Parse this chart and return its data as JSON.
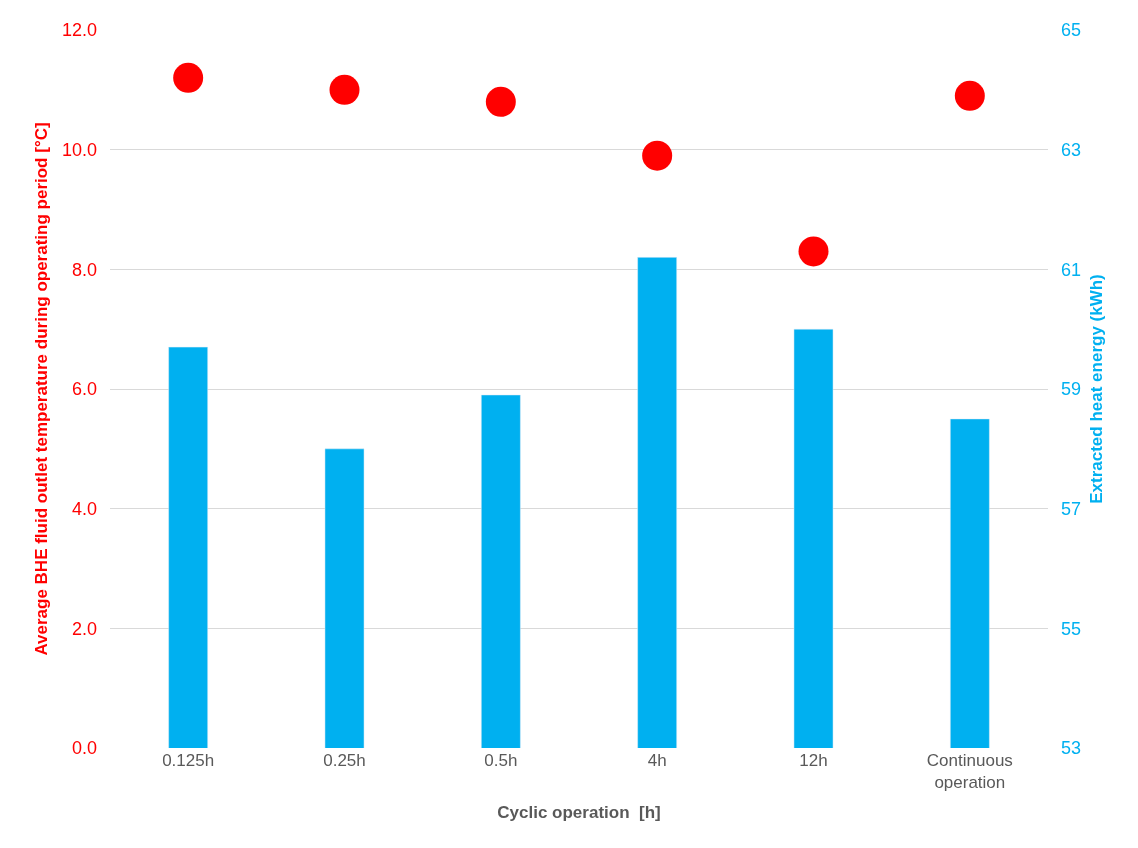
{
  "chart_data": {
    "type": "bar",
    "xlabel": "Cyclic operation  [h]",
    "ylabel": "Average BHE fluid outlet temperature during operating period [°C]",
    "y2label": "Extracted heat energy (kWh)",
    "categories": [
      "0.125h",
      "0.25h",
      "0.5h",
      "4h",
      "12h",
      "Continuous operation"
    ],
    "series": [
      {
        "axis": "y2",
        "color": "#00b0f0",
        "values": [
          59.7,
          58.0,
          58.9,
          61.2,
          60.0,
          58.5
        ]
      },
      {
        "type": "scatter",
        "color": "#ff0000",
        "marker": "circle",
        "values": [
          11.2,
          11.0,
          10.8,
          9.9,
          8.3,
          10.9
        ]
      }
    ],
    "ylim": [
      0,
      12
    ],
    "yticks": [
      {
        "value": 0,
        "label": "0.0"
      },
      {
        "value": 2,
        "label": "2.0"
      },
      {
        "value": 4,
        "label": "4.0"
      },
      {
        "value": 6,
        "label": "6.0"
      },
      {
        "value": 8,
        "label": "8.0"
      },
      {
        "value": 10,
        "label": "10.0"
      },
      {
        "value": 12,
        "label": "12.0"
      }
    ],
    "y2lim": [
      53,
      65
    ],
    "y2ticks": [
      53,
      55,
      57,
      59,
      61,
      63,
      65
    ],
    "grid": "y"
  }
}
